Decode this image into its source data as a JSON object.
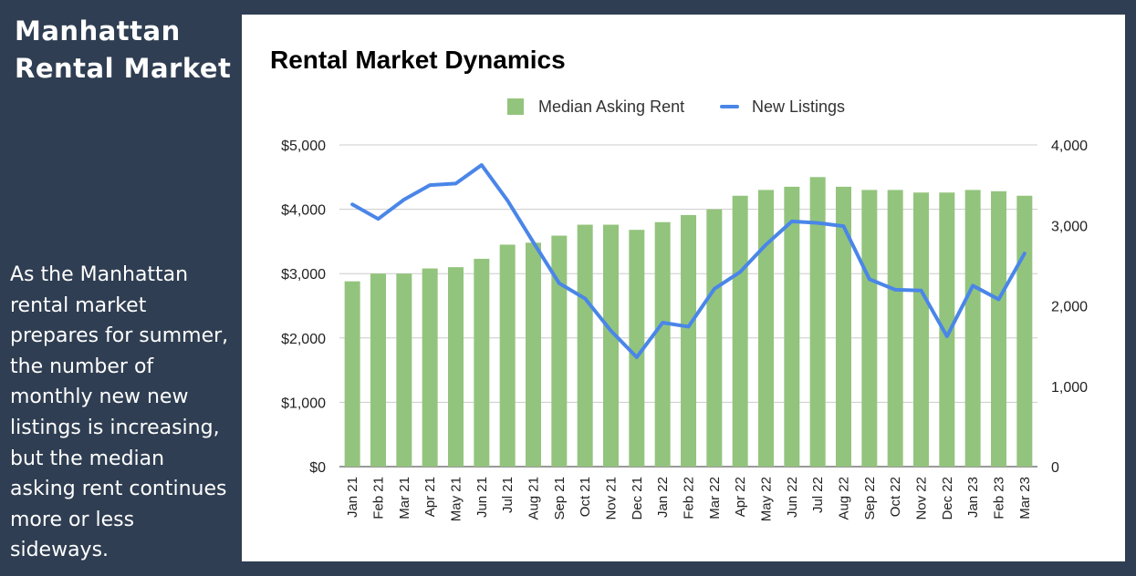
{
  "sidebar": {
    "title": "Manhattan Rental Market",
    "description": "As the Manhattan rental market prepares for summer, the number of monthly new new listings is increasing, but the median asking rent continues more or less sideways."
  },
  "chart_data": {
    "type": "bar",
    "title": "Rental Market Dynamics",
    "categories": [
      "Jan 21",
      "Feb 21",
      "Mar 21",
      "Apr 21",
      "May 21",
      "Jun 21",
      "Jul 21",
      "Aug 21",
      "Sep 21",
      "Oct 21",
      "Nov 21",
      "Dec 21",
      "Jan 22",
      "Feb 22",
      "Mar 22",
      "Apr 22",
      "May 22",
      "Jun 22",
      "Jul 22",
      "Aug 22",
      "Sep 22",
      "Oct 22",
      "Nov 22",
      "Dec 22",
      "Jan 23",
      "Feb 23",
      "Mar 23"
    ],
    "series": [
      {
        "name": "Median Asking Rent",
        "type": "bar",
        "axis": "left",
        "color": "#93c47d",
        "values": [
          2880,
          3000,
          3000,
          3080,
          3100,
          3230,
          3450,
          3480,
          3590,
          3760,
          3760,
          3680,
          3800,
          3910,
          4000,
          4210,
          4300,
          4350,
          4500,
          4350,
          4300,
          4300,
          4260,
          4260,
          4300,
          4280,
          4210
        ]
      },
      {
        "name": "New Listings",
        "type": "line",
        "axis": "right",
        "color": "#4a86e8",
        "values": [
          3260,
          3080,
          3320,
          3500,
          3520,
          3750,
          3310,
          2790,
          2280,
          2090,
          1690,
          1360,
          1790,
          1740,
          2210,
          2420,
          2760,
          3050,
          3030,
          2990,
          2330,
          2200,
          2190,
          1620,
          2250,
          2080,
          2650
        ]
      }
    ],
    "y_left": {
      "ticks": [
        "$0",
        "$1,000",
        "$2,000",
        "$3,000",
        "$4,000",
        "$5,000"
      ],
      "ylim": [
        0,
        5000
      ]
    },
    "y_right": {
      "ticks": [
        "0",
        "1,000",
        "2,000",
        "3,000",
        "4,000"
      ],
      "ylim": [
        0,
        4000
      ]
    },
    "grid": true,
    "legend_position": "top-center"
  }
}
